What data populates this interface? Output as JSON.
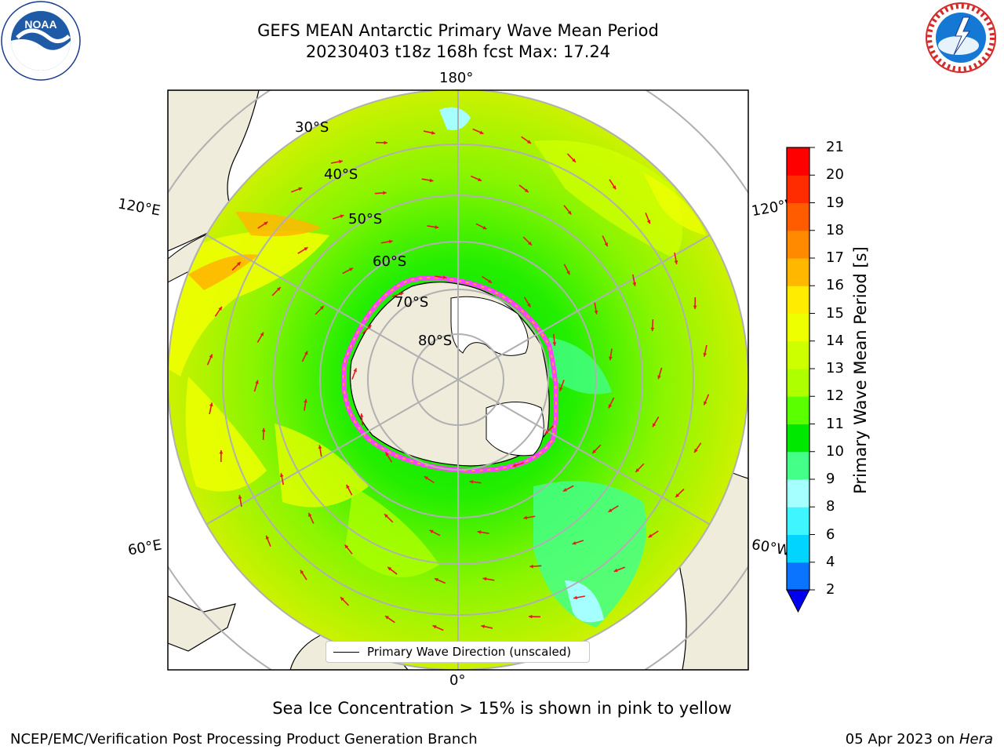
{
  "title": {
    "line1": "GEFS MEAN Antarctic Primary Wave Mean Period",
    "line2": "20230403 t18z 168h fcst   Max: 17.24"
  },
  "logos": {
    "left": {
      "name": "noaa-logo",
      "text": "NOAA",
      "ring_text": "NATIONAL OCEANIC AND ATMOSPHERIC ADMINISTRATION · U.S. DEPARTMENT OF COMMERCE"
    },
    "right": {
      "name": "nws-logo",
      "ring_text": "NATIONAL WEATHER SERVICE"
    }
  },
  "map": {
    "projection": "south-polar-stereographic",
    "longitude_labels": [
      "180°",
      "120°E",
      "120°W",
      "60°E",
      "60°W",
      "0°"
    ],
    "latitude_labels": [
      "30°S",
      "40°S",
      "50°S",
      "60°S",
      "70°S",
      "80°S"
    ],
    "colors": {
      "land": "#efecdc",
      "sea_ice_land": "#ffffff",
      "grid": "#b0b0b0",
      "arrow": "#e8191e",
      "sea_ice_edge": [
        "#ff40ff",
        "#ff9ad5",
        "#ffa726"
      ]
    },
    "legend": "Primary Wave Direction (unscaled)"
  },
  "colorbar": {
    "label": "Primary Wave Mean Period [s]",
    "ticks": [
      "2",
      "4",
      "6",
      "8",
      "9",
      "10",
      "11",
      "12",
      "13",
      "14",
      "15",
      "16",
      "17",
      "18",
      "19",
      "20",
      "21"
    ],
    "colors": [
      "#0a74ff",
      "#00d4ff",
      "#3ff5ff",
      "#a6ffff",
      "#44ff88",
      "#00e800",
      "#5aff00",
      "#aeff00",
      "#ceff00",
      "#eeff00",
      "#ffec00",
      "#ffb700",
      "#ff8a00",
      "#ff5c00",
      "#ff2c00",
      "#ff0000"
    ],
    "under_color": "#0000f0"
  },
  "caption": "Sea Ice Concentration > 15% is shown in pink to yellow",
  "footer": {
    "left": "NCEP/EMC/Verification Post Processing Product Generation Branch",
    "right_prefix": "05 Apr 2023 on ",
    "right_host": "Hera"
  }
}
